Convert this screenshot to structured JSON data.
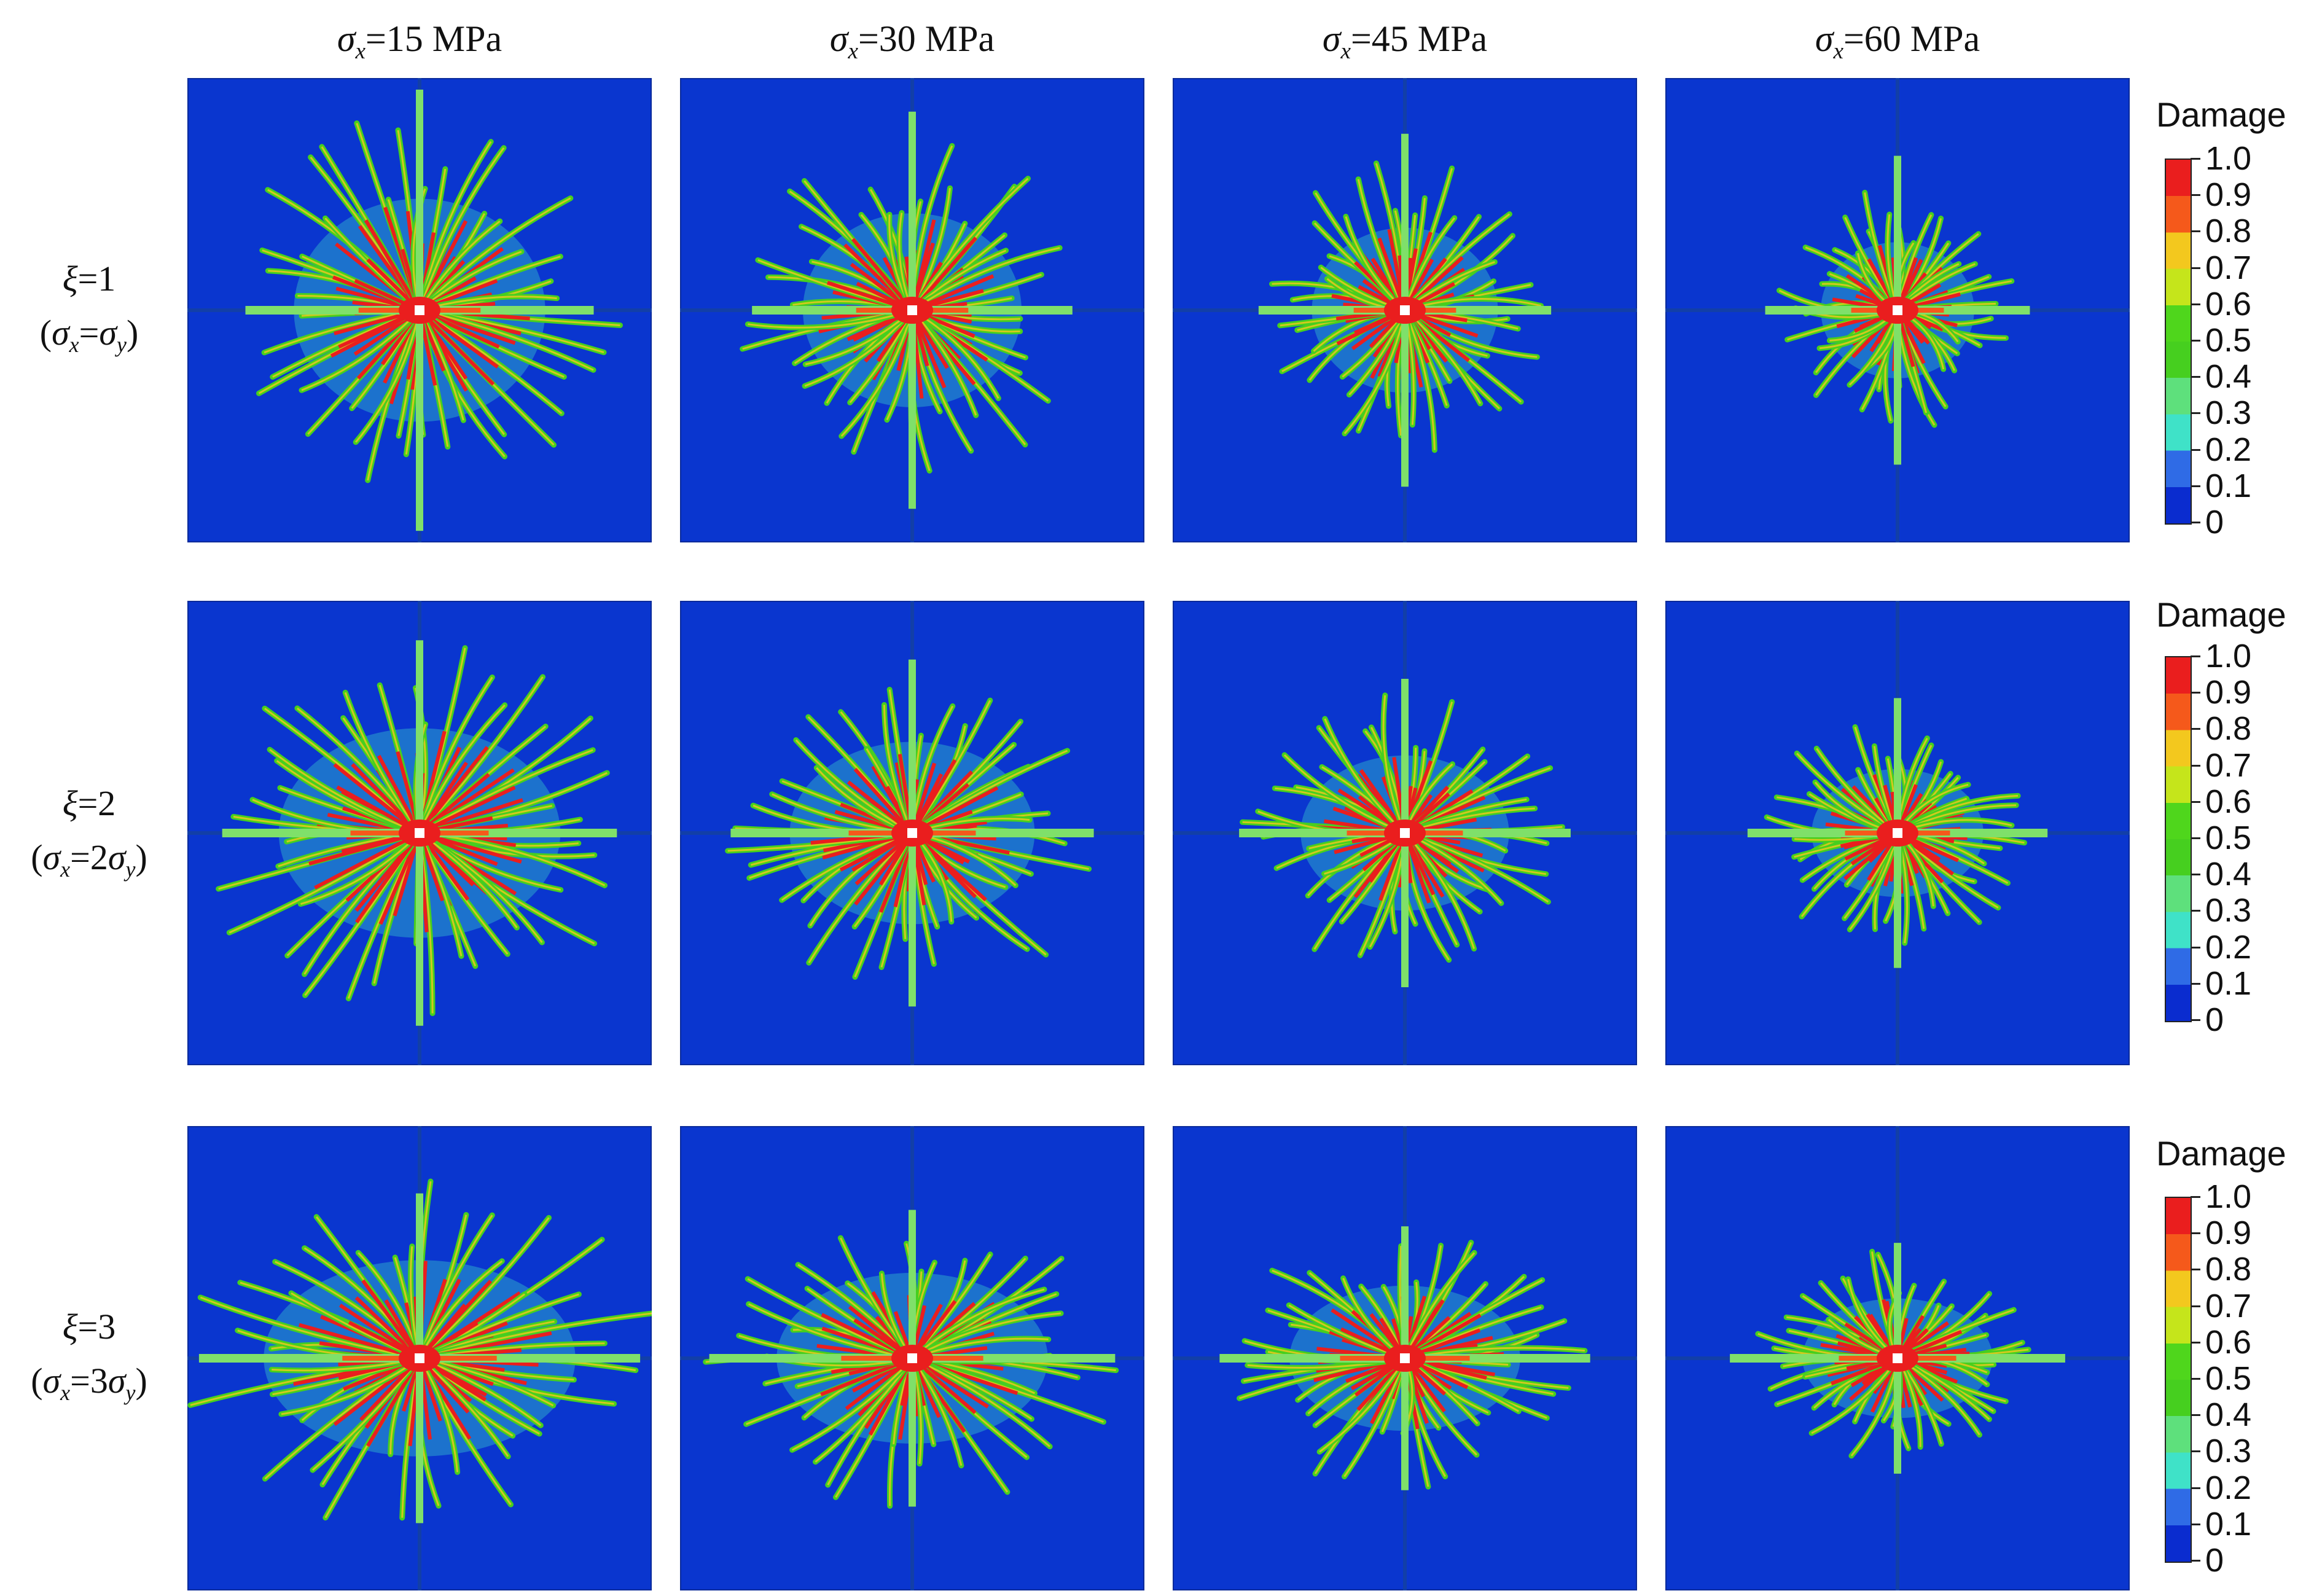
{
  "columns": [
    {
      "sym": "σ",
      "sub": "x",
      "rest": "=15 MPa"
    },
    {
      "sym": "σ",
      "sub": "x",
      "rest": "=30 MPa"
    },
    {
      "sym": "σ",
      "sub": "x",
      "rest": "=45 MPa"
    },
    {
      "sym": "σ",
      "sub": "x",
      "rest": "=60 MPa"
    }
  ],
  "rows": [
    {
      "line1": {
        "sym": "ξ",
        "rest": "=1"
      },
      "line2": {
        "open": "(",
        "s1": "σ",
        "sub1": "x",
        "mid": "=",
        "coef": "",
        "s2": "σ",
        "sub2": "y",
        "close": ")"
      }
    },
    {
      "line1": {
        "sym": "ξ",
        "rest": "=2"
      },
      "line2": {
        "open": "(",
        "s1": "σ",
        "sub1": "x",
        "mid": "=",
        "coef": "2",
        "s2": "σ",
        "sub2": "y",
        "close": ")"
      }
    },
    {
      "line1": {
        "sym": "ξ",
        "rest": "=3"
      },
      "line2": {
        "open": "(",
        "s1": "σ",
        "sub1": "x",
        "mid": "=",
        "coef": "3",
        "s2": "σ",
        "sub2": "y",
        "close": ")"
      }
    }
  ],
  "colorbar": {
    "title": "Damage",
    "ticks": [
      "1.0",
      "0.9",
      "0.8",
      "0.7",
      "0.6",
      "0.5",
      "0.4",
      "0.3",
      "0.2",
      "0.1",
      "0"
    ]
  },
  "colors": {
    "background": "#0a36cf",
    "red": "#ea1e1e",
    "orange": "#f5591b",
    "yellow": "#f3c81e",
    "green": "#46cf1f",
    "light_green": "#7fe06a",
    "cyan": "#3fe2c8"
  }
}
